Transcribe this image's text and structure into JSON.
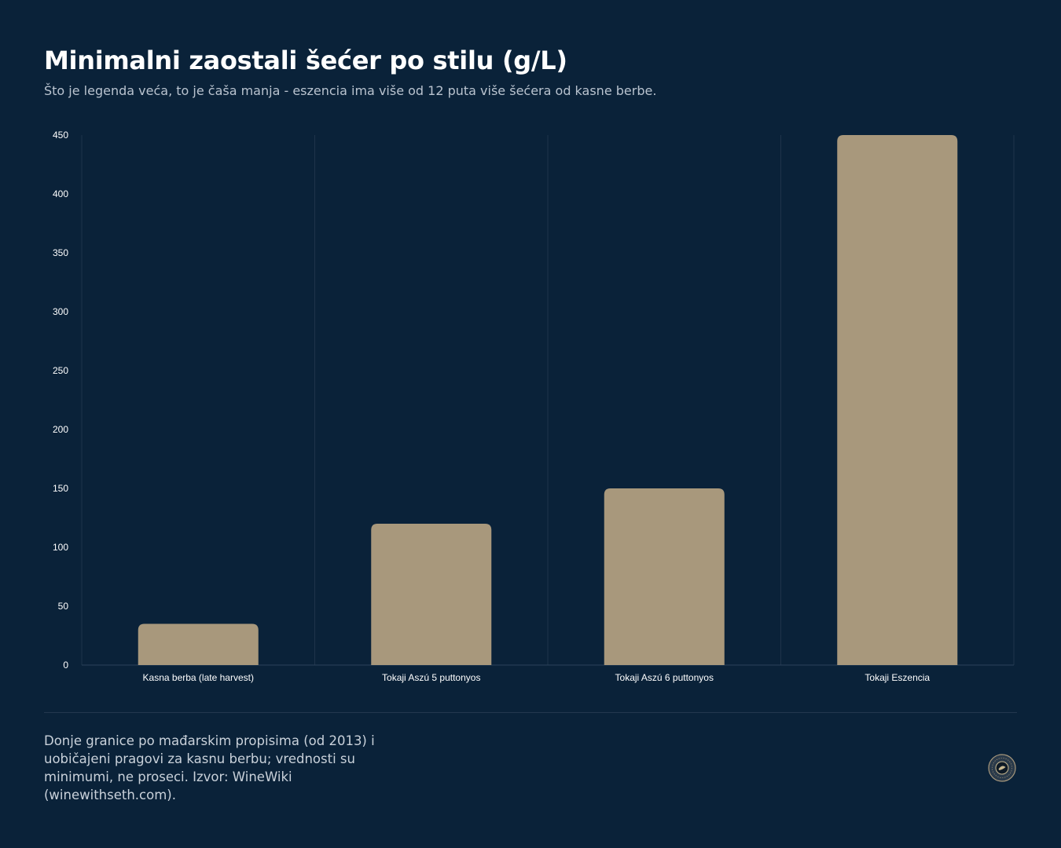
{
  "title": "Minimalni zaostali šećer po stilu (g/L)",
  "subtitle": "Što je legenda veća, to je čaša manja - eszencia ima više od 12 puta više šećera od kasne berbe.",
  "footnote": "Donje granice po mađarskim propisima (od 2013) i uobičajeni pragovi za kasnu berbu; vrednosti su minimumi, ne proseci. Izvor: WineWiki (winewithseth.com).",
  "colors": {
    "background": "#0a2239",
    "bar": "#a8987c",
    "grid": "#1f344b",
    "axis_text": "#ffffff"
  },
  "logo_icon": "wine-seal-icon",
  "chart_data": {
    "type": "bar",
    "categories": [
      "Kasna berba (late harvest)",
      "Tokaji Aszú 5 puttonyos",
      "Tokaji Aszú 6 puttonyos",
      "Tokaji Eszencia"
    ],
    "values": [
      35,
      120,
      150,
      450
    ],
    "ylim": [
      0,
      450
    ],
    "yticks": [
      "0",
      "50",
      "100",
      "150",
      "200",
      "250",
      "300",
      "350",
      "400",
      "450"
    ],
    "xlabel": "",
    "ylabel": "",
    "grid": "vertical"
  }
}
